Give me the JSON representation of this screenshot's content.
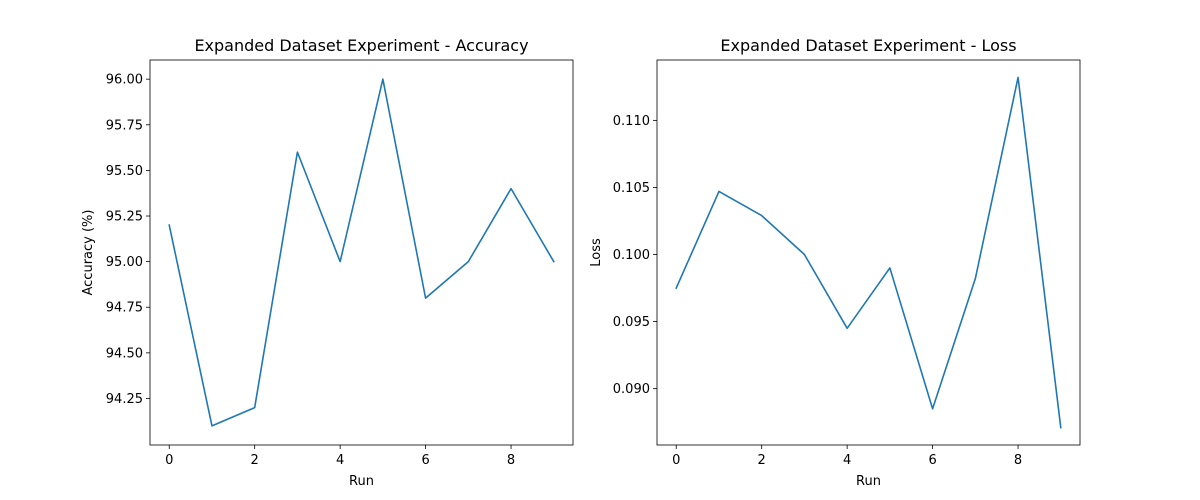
{
  "chart_data": [
    {
      "type": "line",
      "title": "Expanded Dataset Experiment - Accuracy",
      "xlabel": "Run",
      "ylabel": "Accuracy (%)",
      "x": [
        0,
        1,
        2,
        3,
        4,
        5,
        6,
        7,
        8,
        9
      ],
      "series": [
        {
          "values": [
            95.2,
            94.1,
            94.2,
            95.6,
            95.0,
            96.0,
            94.8,
            95.0,
            95.4,
            95.0
          ]
        }
      ],
      "xlim": [
        -0.45,
        9.45
      ],
      "ylim": [
        93.995,
        96.105
      ],
      "xticks": [
        0,
        2,
        4,
        6,
        8
      ],
      "xtick_labels": [
        "0",
        "2",
        "4",
        "6",
        "8"
      ],
      "yticks": [
        94.25,
        94.5,
        94.75,
        95.0,
        95.25,
        95.5,
        95.75,
        96.0
      ],
      "ytick_labels": [
        "94.25",
        "94.50",
        "94.75",
        "95.00",
        "95.25",
        "95.50",
        "95.75",
        "96.00"
      ],
      "color": "#1f77b4",
      "grid": false
    },
    {
      "type": "line",
      "title": "Expanded Dataset Experiment - Loss",
      "xlabel": "Run",
      "ylabel": "Loss",
      "x": [
        0,
        1,
        2,
        3,
        4,
        5,
        6,
        7,
        8,
        9
      ],
      "series": [
        {
          "values": [
            0.0975,
            0.1047,
            0.1029,
            0.1,
            0.0945,
            0.099,
            0.0885,
            0.0982,
            0.1132,
            0.0871
          ]
        }
      ],
      "xlim": [
        -0.45,
        9.45
      ],
      "ylim": [
        0.0858,
        0.1145
      ],
      "xticks": [
        0,
        2,
        4,
        6,
        8
      ],
      "xtick_labels": [
        "0",
        "2",
        "4",
        "6",
        "8"
      ],
      "yticks": [
        0.09,
        0.095,
        0.1,
        0.105,
        0.11
      ],
      "ytick_labels": [
        "0.090",
        "0.095",
        "0.100",
        "0.105",
        "0.110"
      ],
      "color": "#1f77b4",
      "grid": false
    }
  ]
}
